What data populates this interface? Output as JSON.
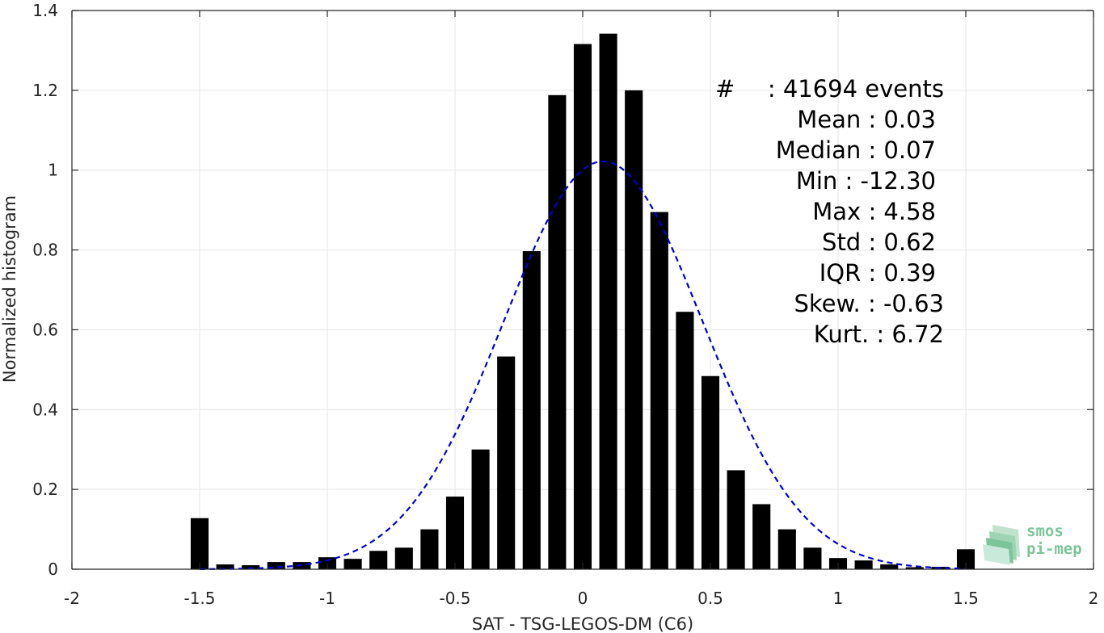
{
  "chart_data": {
    "type": "bar",
    "xlabel": "SAT - TSG-LEGOS-DM (C6)",
    "ylabel": "Normalized histogram",
    "xlim": [
      -2,
      2
    ],
    "ylim": [
      0,
      1.4
    ],
    "x_ticks": [
      "-2",
      "-1.5",
      "-1",
      "-0.5",
      "0",
      "0.5",
      "1",
      "1.5",
      "2"
    ],
    "y_ticks": [
      "0",
      "0.2",
      "0.4",
      "0.6",
      "0.8",
      "1",
      "1.2",
      "1.4"
    ],
    "grid": true,
    "bar_color": "#000000",
    "bins": {
      "centers": [
        -1.5,
        -1.4,
        -1.3,
        -1.2,
        -1.1,
        -1.0,
        -0.9,
        -0.8,
        -0.7,
        -0.6,
        -0.5,
        -0.4,
        -0.3,
        -0.2,
        -0.1,
        0.0,
        0.1,
        0.2,
        0.3,
        0.4,
        0.5,
        0.6,
        0.7,
        0.8,
        0.9,
        1.0,
        1.1,
        1.2,
        1.3,
        1.4,
        1.5
      ],
      "values": [
        0.128,
        0.012,
        0.01,
        0.018,
        0.018,
        0.03,
        0.026,
        0.046,
        0.054,
        0.1,
        0.182,
        0.3,
        0.533,
        0.797,
        1.188,
        1.316,
        1.342,
        1.2,
        0.895,
        0.645,
        0.484,
        0.248,
        0.163,
        0.1,
        0.054,
        0.028,
        0.022,
        0.012,
        0.005,
        0.006,
        0.05
      ]
    },
    "fit": {
      "type": "gaussian",
      "style": "dashed",
      "color": "#0000dd",
      "mean": 0.08,
      "std": 0.39,
      "peak": 1.022,
      "x_range": [
        -1.5,
        1.5
      ]
    },
    "stats": [
      {
        "label": "#",
        "sep": " : ",
        "value": "41694 events"
      },
      {
        "label": "Mean",
        "sep": " : ",
        "value": "0.03"
      },
      {
        "label": "Median",
        "sep": " : ",
        "value": "0.07"
      },
      {
        "label": "Min",
        "sep": " : ",
        "value": "-12.30"
      },
      {
        "label": "Max",
        "sep": " : ",
        "value": "4.58"
      },
      {
        "label": "Std",
        "sep": " : ",
        "value": "0.62"
      },
      {
        "label": "IQR",
        "sep": " : ",
        "value": "0.39"
      },
      {
        "label": "Skew.",
        "sep": " : ",
        "value": "-0.63"
      },
      {
        "label": "Kurt.",
        "sep": " : ",
        "value": "6.72"
      }
    ]
  },
  "logo": {
    "line1": "smos",
    "line2": "pi-mep",
    "color": "#7cc49a"
  }
}
